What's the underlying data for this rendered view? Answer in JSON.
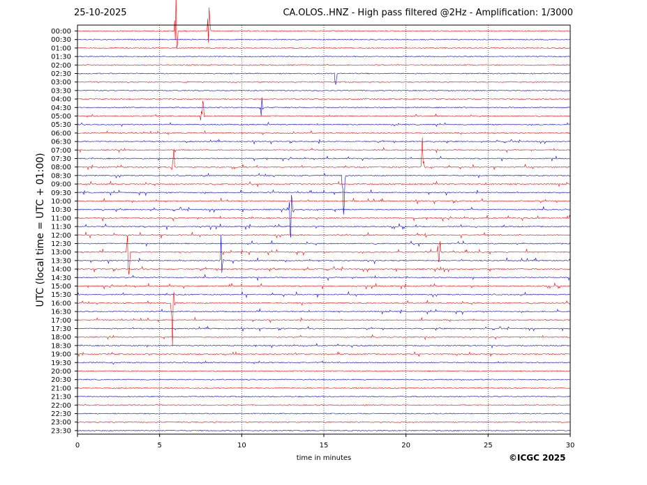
{
  "header": {
    "date": "25-10-2025",
    "title": "CA.OLOS..HNZ - High pass filtered @2Hz - Amplification: 1/3000"
  },
  "footer": {
    "copyright": "©ICGC 2025"
  },
  "colors": {
    "odd_trace": "#ff0000",
    "even_trace": "#0000ff",
    "grid": "#000000"
  },
  "chart_data": {
    "type": "line",
    "title": "CA.OLOS..HNZ - High pass filtered @2Hz - Amplification: 1/3000",
    "xlabel": "time in minutes",
    "ylabel": "UTC (local time = UTC + 01:00)",
    "xlim": [
      0,
      30
    ],
    "x_ticks": [
      "0",
      "5",
      "10",
      "15",
      "20",
      "25",
      "30"
    ],
    "grid_x": true,
    "rows": [
      "00:00",
      "00:30",
      "01:00",
      "01:30",
      "02:00",
      "02:30",
      "03:00",
      "03:30",
      "04:00",
      "04:30",
      "05:00",
      "05:30",
      "06:00",
      "06:30",
      "07:00",
      "07:30",
      "08:00",
      "08:30",
      "09:00",
      "09:30",
      "10:00",
      "10:30",
      "11:00",
      "11:30",
      "12:00",
      "12:30",
      "13:00",
      "13:30",
      "14:00",
      "14:30",
      "15:00",
      "15:30",
      "16:00",
      "16:30",
      "17:00",
      "17:30",
      "18:00",
      "18:30",
      "19:00",
      "19:30",
      "20:00",
      "20:30",
      "21:00",
      "21:30",
      "22:00",
      "22:30",
      "23:00",
      "23:30"
    ],
    "trace_colors": [
      "red",
      "blue"
    ],
    "notable_events": [
      {
        "row": "00:00",
        "minute": 6.0,
        "amplitude": "large"
      },
      {
        "row": "00:00",
        "minute": 8.0,
        "amplitude": "large"
      },
      {
        "row": "02:30",
        "minute": 15.7,
        "amplitude": "medium"
      },
      {
        "row": "04:30",
        "minute": 11.2,
        "amplitude": "medium"
      },
      {
        "row": "05:00",
        "minute": 7.6,
        "amplitude": "large"
      },
      {
        "row": "08:00",
        "minute": 5.8,
        "amplitude": "large"
      },
      {
        "row": "08:30",
        "minute": 16.2,
        "amplitude": "large"
      },
      {
        "row": "08:00",
        "minute": 21.0,
        "amplitude": "large"
      },
      {
        "row": "10:30",
        "minute": 13.0,
        "amplitude": "large"
      },
      {
        "row": "13:00",
        "minute": 3.1,
        "amplitude": "large"
      },
      {
        "row": "13:30",
        "minute": 8.8,
        "amplitude": "large"
      },
      {
        "row": "13:00",
        "minute": 22.0,
        "amplitude": "large"
      },
      {
        "row": "16:00",
        "minute": 5.8,
        "amplitude": "large"
      }
    ]
  }
}
